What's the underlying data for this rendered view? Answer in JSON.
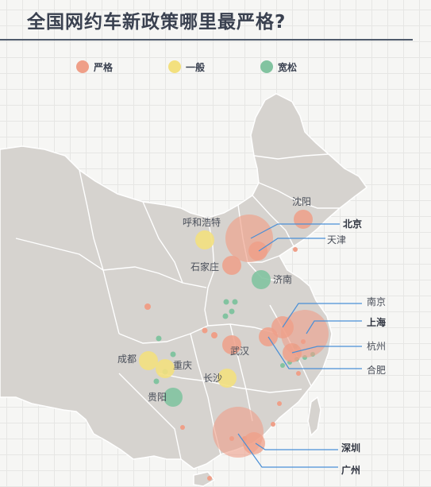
{
  "title": "全国网约车新政策哪里最严格?",
  "legend": [
    {
      "label": "严格",
      "color": "#ef9f88"
    },
    {
      "label": "一般",
      "color": "#f3e07e"
    },
    {
      "label": "宽松",
      "color": "#82c3a0"
    }
  ],
  "cities": {
    "shenyang": "沈阳",
    "beijing": "北京",
    "tianjin": "天津",
    "huhehaote": "呼和浩特",
    "shijiazhuang": "石家庄",
    "jinan": "济南",
    "nanjing": "南京",
    "shanghai": "上海",
    "hangzhou": "杭州",
    "hefei": "合肥",
    "wuhan": "武汉",
    "chengdu": "成都",
    "chongqing": "重庆",
    "changsha": "长沙",
    "guiyang": "贵阳",
    "shenzhen": "深圳",
    "guangzhou": "广州"
  },
  "colors": {
    "land": "#d6d3cf",
    "border": "#ffffff",
    "strict": "#ef9f88",
    "normal": "#f3e07e",
    "loose": "#82c3a0",
    "leader": "#4a8fd6"
  }
}
